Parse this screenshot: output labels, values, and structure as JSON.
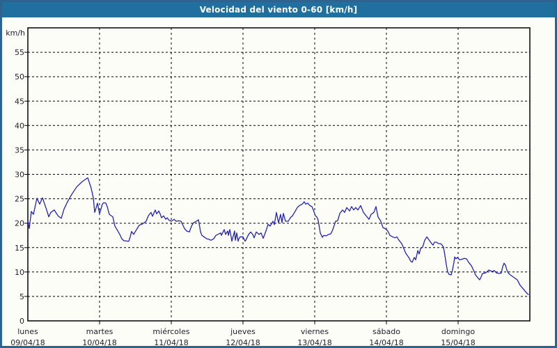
{
  "window": {
    "title": "Velocidad del viento 0-60 [km/h]"
  },
  "colors": {
    "titlebar": "#1f6f9f",
    "window_border": "#2e6390",
    "background": "#fdfdf8",
    "line": "#2222b4",
    "grid": "#000000",
    "frame": "#000000",
    "text": "#1f1f2e",
    "title_text": "#ffffff"
  },
  "chart_data": {
    "type": "line",
    "title": "Velocidad del viento 0-60 [km/h]",
    "ylabel": "km/h",
    "xlabel": "",
    "ylim": [
      0,
      60
    ],
    "yticks": [
      0,
      5,
      10,
      15,
      20,
      25,
      30,
      35,
      40,
      45,
      50,
      55
    ],
    "grid": "dashed",
    "legend": "none",
    "x_axis": {
      "range_days": [
        0,
        7
      ],
      "days": [
        {
          "name": "lunes",
          "date": "09/04/18"
        },
        {
          "name": "martes",
          "date": "10/04/18"
        },
        {
          "name": "miércoles",
          "date": "11/04/18"
        },
        {
          "name": "jueves",
          "date": "12/04/18"
        },
        {
          "name": "viernes",
          "date": "13/04/18"
        },
        {
          "name": "sábado",
          "date": "14/04/18"
        },
        {
          "name": "domingo",
          "date": "15/04/18"
        }
      ]
    },
    "series": [
      {
        "name": "velocidad_viento_kmh",
        "x_days": [
          0,
          0.019,
          0.049,
          0.078,
          0.126,
          0.165,
          0.204,
          0.262,
          0.291,
          0.32,
          0.369,
          0.398,
          0.427,
          0.466,
          0.505,
          0.553,
          0.612,
          0.68,
          0.757,
          0.835,
          0.883,
          0.913,
          0.932,
          0.971,
          1,
          1.039,
          1.058,
          1.087,
          1.107,
          1.136,
          1.184,
          1.214,
          1.243,
          1.282,
          1.311,
          1.34,
          1.408,
          1.427,
          1.447,
          1.476,
          1.495,
          1.524,
          1.553,
          1.592,
          1.621,
          1.65,
          1.68,
          1.718,
          1.738,
          1.777,
          1.796,
          1.825,
          1.845,
          1.864,
          1.893,
          1.922,
          1.942,
          1.971,
          2,
          2.039,
          2.068,
          2.107,
          2.136,
          2.184,
          2.214,
          2.252,
          2.282,
          2.311,
          2.35,
          2.379,
          2.398,
          2.408,
          2.427,
          2.456,
          2.495,
          2.524,
          2.553,
          2.592,
          2.621,
          2.65,
          2.689,
          2.699,
          2.738,
          2.757,
          2.786,
          2.796,
          2.816,
          2.835,
          2.845,
          2.883,
          2.893,
          2.913,
          2.932,
          2.942,
          2.961,
          3,
          3.029,
          3.039,
          3.078,
          3.107,
          3.136,
          3.155,
          3.184,
          3.223,
          3.252,
          3.282,
          3.32,
          3.35,
          3.379,
          3.417,
          3.437,
          3.466,
          3.495,
          3.524,
          3.544,
          3.563,
          3.592,
          3.631,
          3.66,
          3.689,
          3.718,
          3.757,
          3.786,
          3.825,
          3.854,
          3.874,
          3.903,
          3.932,
          3.961,
          3.981,
          4.01,
          4.029,
          4.049,
          4.078,
          4.107,
          4.126,
          4.155,
          4.194,
          4.223,
          4.252,
          4.291,
          4.32,
          4.35,
          4.388,
          4.417,
          4.447,
          4.485,
          4.515,
          4.544,
          4.573,
          4.602,
          4.641,
          4.68,
          4.728,
          4.757,
          4.786,
          4.825,
          4.854,
          4.883,
          4.922,
          4.951,
          4.981,
          5.019,
          5.049,
          5.087,
          5.117,
          5.146,
          5.175,
          5.214,
          5.243,
          5.272,
          5.311,
          5.34,
          5.359,
          5.388,
          5.408,
          5.427,
          5.437,
          5.456,
          5.476,
          5.505,
          5.534,
          5.563,
          5.583,
          5.612,
          5.631,
          5.65,
          5.67,
          5.699,
          5.728,
          5.757,
          5.777,
          5.796,
          5.816,
          5.835,
          5.854,
          5.874,
          5.903,
          5.922,
          5.942,
          5.951,
          5.971,
          5.99,
          6.019,
          6.049,
          6.087,
          6.117,
          6.146,
          6.184,
          6.214,
          6.243,
          6.282,
          6.301,
          6.32,
          6.34,
          6.379,
          6.408,
          6.427,
          6.476,
          6.505,
          6.534,
          6.573,
          6.602,
          6.621,
          6.641,
          6.66,
          6.68,
          6.699,
          6.728,
          6.767,
          6.796,
          6.825,
          6.864,
          6.893,
          6.922,
          6.961,
          6.981
        ],
        "values": [
          20.5,
          18.9,
          22.4,
          21.8,
          25.1,
          23.9,
          25.2,
          22.7,
          21.3,
          22.2,
          22.7,
          22.0,
          21.4,
          21.0,
          22.9,
          24.4,
          25.9,
          27.4,
          28.5,
          29.3,
          27.2,
          25.2,
          22.2,
          24.1,
          21.9,
          23.9,
          24.2,
          24.1,
          23.4,
          21.8,
          21.3,
          19.4,
          18.7,
          17.7,
          16.8,
          16.4,
          16.3,
          17.2,
          18.3,
          17.7,
          18.2,
          18.9,
          19.6,
          19.8,
          20.1,
          20.4,
          21.5,
          22.2,
          21.4,
          22.7,
          21.9,
          22.5,
          21.9,
          21.1,
          21.5,
          20.8,
          21.1,
          20.6,
          20.4,
          20.8,
          20.4,
          20.5,
          20.4,
          18.9,
          18.4,
          18.2,
          19.4,
          20.1,
          20.4,
          20.7,
          19.1,
          18.2,
          17.5,
          17.2,
          16.8,
          16.7,
          16.5,
          16.8,
          17.5,
          17.7,
          18.0,
          17.5,
          18.7,
          17.7,
          18.4,
          17.5,
          18.7,
          17.2,
          16.3,
          18.4,
          16.5,
          18.0,
          16.3,
          16.8,
          17.2,
          17.2,
          16.3,
          16.5,
          17.7,
          18.2,
          17.7,
          17.0,
          18.2,
          17.7,
          18.0,
          16.9,
          18.4,
          19.8,
          19.4,
          20.4,
          19.7,
          22.2,
          20.1,
          21.8,
          20.1,
          22.0,
          20.4,
          20.4,
          21.1,
          21.5,
          22.2,
          23.2,
          23.6,
          23.9,
          24.4,
          23.9,
          24.1,
          23.6,
          23.4,
          22.7,
          21.5,
          21.3,
          20.6,
          18.0,
          17.1,
          17.5,
          17.4,
          17.7,
          17.8,
          18.7,
          20.4,
          20.5,
          22.0,
          22.7,
          22.2,
          23.2,
          22.5,
          23.4,
          22.7,
          23.2,
          22.7,
          23.6,
          22.2,
          21.3,
          20.8,
          21.8,
          22.2,
          23.4,
          21.3,
          20.4,
          19.1,
          18.9,
          18.4,
          17.5,
          17.2,
          17.0,
          17.2,
          16.5,
          15.8,
          14.8,
          13.8,
          13.0,
          12.2,
          12.0,
          13.0,
          12.5,
          13.7,
          14.4,
          13.7,
          14.8,
          15.1,
          16.5,
          17.2,
          16.8,
          16.2,
          15.8,
          15.5,
          16.1,
          16.1,
          15.8,
          15.8,
          15.5,
          15.1,
          13.4,
          11.5,
          10.0,
          9.5,
          9.4,
          10.5,
          12.0,
          13.1,
          12.7,
          13.0,
          12.5,
          12.6,
          12.8,
          12.7,
          12.0,
          11.3,
          10.4,
          9.4,
          8.7,
          8.4,
          9.0,
          9.7,
          9.8,
          10.1,
          10.4,
          10.1,
          10.3,
          9.8,
          9.7,
          9.8,
          11.1,
          11.8,
          11.4,
          10.4,
          9.8,
          9.4,
          9.0,
          8.7,
          8.4,
          7.3,
          6.8,
          6.3,
          5.6,
          5.4
        ]
      }
    ]
  }
}
